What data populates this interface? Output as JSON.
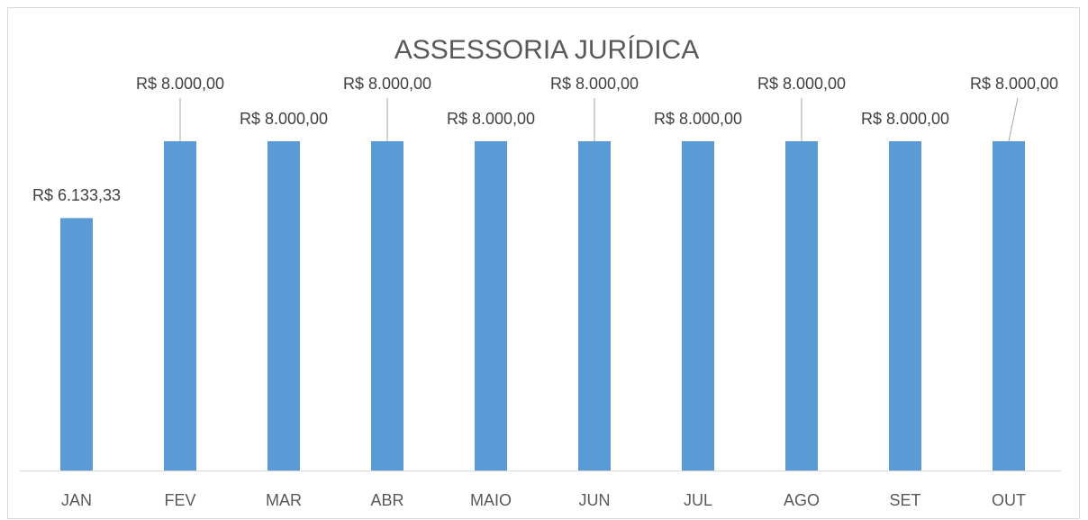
{
  "chart_data": {
    "type": "bar",
    "title": "ASSESSORIA JURÍDICA",
    "categories": [
      "JAN",
      "FEV",
      "MAR",
      "ABR",
      "MAIO",
      "JUN",
      "JUL",
      "AGO",
      "SET",
      "OUT"
    ],
    "values": [
      6133.33,
      8000,
      8000,
      8000,
      8000,
      8000,
      8000,
      8000,
      8000,
      8000
    ],
    "value_labels": [
      "R$ 6.133,33",
      "R$ 8.000,00",
      "R$ 8.000,00",
      "R$ 8.000,00",
      "R$ 8.000,00",
      "R$ 8.000,00",
      "R$ 8.000,00",
      "R$ 8.000,00",
      "R$ 8.000,00",
      "R$ 8.000,00"
    ],
    "color": "#5b9bd5",
    "ylim": [
      0,
      10000
    ]
  }
}
